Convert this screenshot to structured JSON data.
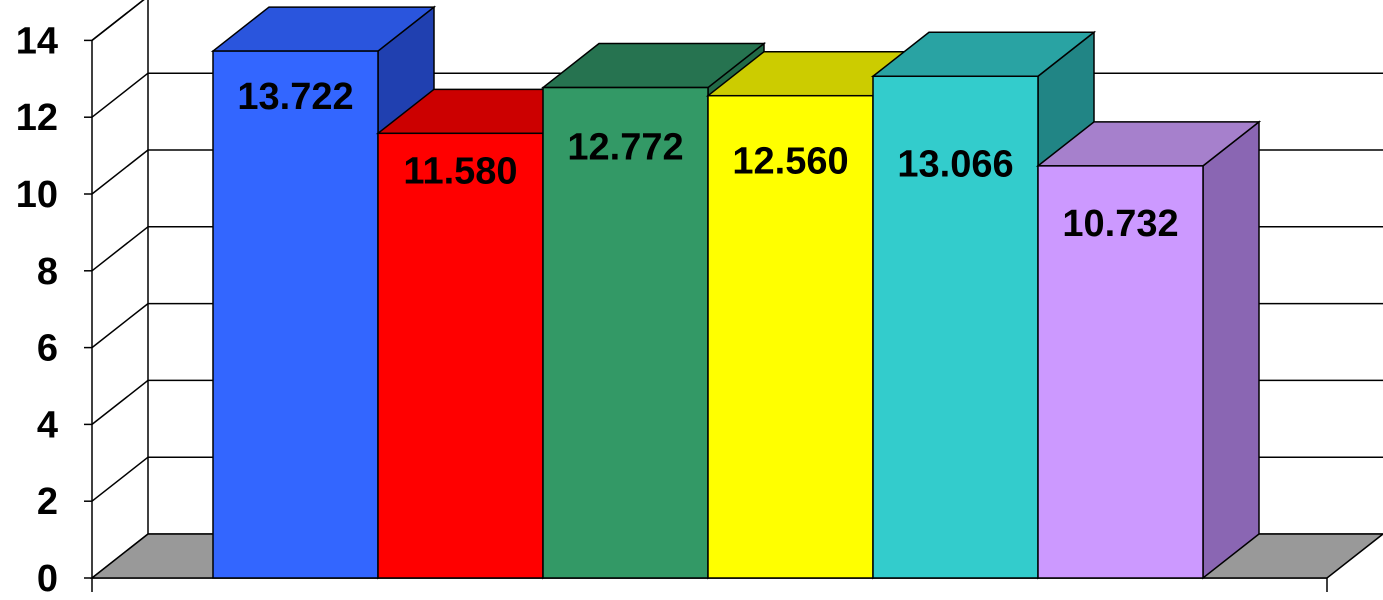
{
  "chart_data": {
    "type": "bar",
    "style": "3d",
    "values": [
      13.722,
      11.58,
      12.772,
      12.56,
      13.066,
      10.732
    ],
    "data_labels": [
      "13.722",
      "11.580",
      "12.772",
      "12.560",
      "13.066",
      "10.732"
    ],
    "colors": [
      "#3366ff",
      "#ff0000",
      "#339966",
      "#ffff00",
      "#33cccc",
      "#cc99ff"
    ],
    "side_colors": [
      "#2040b0",
      "#b00000",
      "#226a47",
      "#b8b800",
      "#218585",
      "#8a66b3"
    ],
    "top_colors": [
      "#2a55dd",
      "#cc0000",
      "#267350",
      "#cccc00",
      "#29a3a3",
      "#a680cc"
    ],
    "y_ticks": [
      0,
      2,
      4,
      6,
      8,
      10,
      12,
      14
    ],
    "ylim": [
      0,
      14
    ],
    "grid": true,
    "legend": "none",
    "floor_color": "#999999"
  }
}
